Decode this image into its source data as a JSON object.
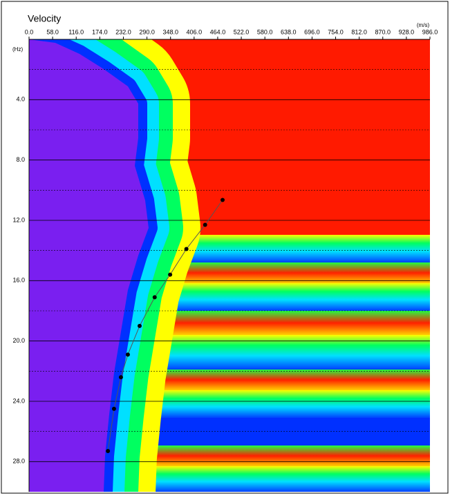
{
  "chart_data": {
    "type": "scatter",
    "title": "Velocity",
    "x_unit": "(m/s)",
    "y_unit": "(Hz)",
    "x": [
      476,
      433,
      387,
      347,
      309,
      272,
      243,
      226,
      209,
      194
    ],
    "values": [
      10.65,
      12.3,
      13.9,
      15.6,
      17.1,
      19.0,
      20.9,
      22.4,
      24.5,
      27.3
    ],
    "color": "#000000",
    "connect": true,
    "xlim": [
      0,
      986
    ],
    "ylim": [
      0,
      30
    ],
    "y_inverted": true,
    "x_axis_position": "top",
    "xticks": [
      {
        "value": 0,
        "label": "0.0"
      },
      {
        "value": 58,
        "label": "58.0"
      },
      {
        "value": 116,
        "label": "116.0"
      },
      {
        "value": 174,
        "label": "174.0"
      },
      {
        "value": 232,
        "label": "232.0"
      },
      {
        "value": 290,
        "label": "290.0"
      },
      {
        "value": 348,
        "label": "348.0"
      },
      {
        "value": 406,
        "label": "406.0"
      },
      {
        "value": 464,
        "label": "464.0"
      },
      {
        "value": 522,
        "label": "522.0"
      },
      {
        "value": 580,
        "label": "580.0"
      },
      {
        "value": 638,
        "label": "638.0"
      },
      {
        "value": 696,
        "label": "696.0"
      },
      {
        "value": 754,
        "label": "754.0"
      },
      {
        "value": 812,
        "label": "812.0"
      },
      {
        "value": 870,
        "label": "870.0"
      },
      {
        "value": 928,
        "label": "928.0"
      },
      {
        "value": 986,
        "label": "986.0"
      }
    ],
    "yticks": [
      {
        "value": 4,
        "label": "4.0"
      },
      {
        "value": 8,
        "label": "8.0"
      },
      {
        "value": 12,
        "label": "12.0"
      },
      {
        "value": 16,
        "label": "16.0"
      },
      {
        "value": 20,
        "label": "20.0"
      },
      {
        "value": 24,
        "label": "24.0"
      },
      {
        "value": 28,
        "label": "28.0"
      }
    ],
    "yminor": [
      2,
      6,
      10,
      14,
      18,
      22,
      26
    ],
    "grid": true
  }
}
